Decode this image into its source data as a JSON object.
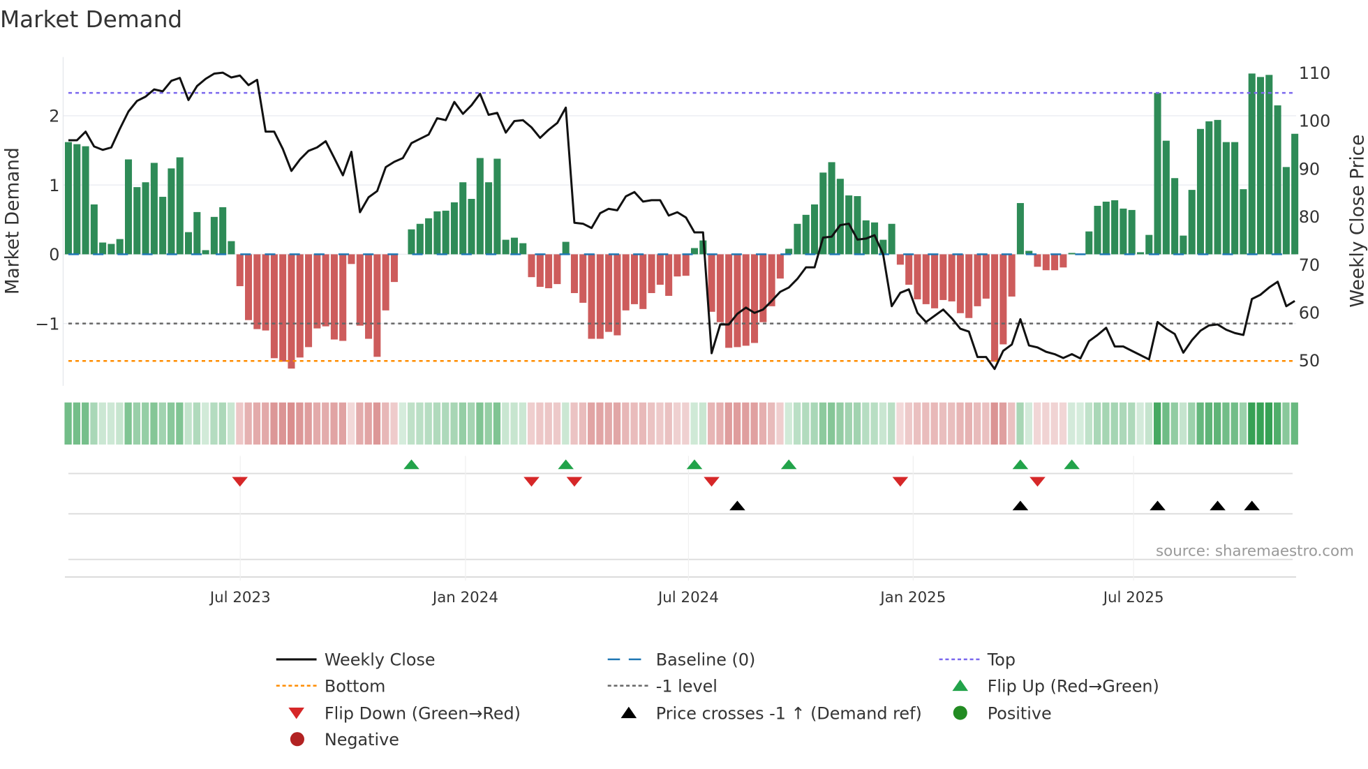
{
  "chart_data": {
    "type": "bar",
    "title": "Market Demand",
    "ylabel": "Market Demand",
    "y2label": "Weekly Close Price",
    "source": "source: sharemaestro.com",
    "ylim": [
      -1.9,
      2.85
    ],
    "y2lim": [
      47,
      114
    ],
    "yticks": [
      {
        "v": 2,
        "label": "2"
      },
      {
        "v": 1,
        "label": "1"
      },
      {
        "v": 0,
        "label": "0"
      },
      {
        "v": -1,
        "label": "−1"
      }
    ],
    "y2ticks": [
      {
        "v": 110,
        "label": "110"
      },
      {
        "v": 100,
        "label": "100"
      },
      {
        "v": 90,
        "label": "90"
      },
      {
        "v": 80,
        "label": "80"
      },
      {
        "v": 70,
        "label": "70"
      },
      {
        "v": 60,
        "label": "60"
      },
      {
        "v": 50,
        "label": "50"
      }
    ],
    "xticks": [
      {
        "x": 20.04,
        "label": "Jul 2023"
      },
      {
        "x": 46.3,
        "label": "Jan 2024"
      },
      {
        "x": 72.3,
        "label": "Jul 2024"
      },
      {
        "x": 98.5,
        "label": "Jan 2025"
      },
      {
        "x": 124.2,
        "label": "Jul 2025"
      }
    ],
    "levels": {
      "top": 2.33,
      "baseline": 0,
      "minus_one": -1,
      "bottom": -1.54
    },
    "demand": [
      1.62,
      1.59,
      1.56,
      0.72,
      0.17,
      0.15,
      0.22,
      1.37,
      0.97,
      1.04,
      1.32,
      0.83,
      1.24,
      1.4,
      0.32,
      0.61,
      0.06,
      0.54,
      0.68,
      0.19,
      -0.46,
      -0.95,
      -1.08,
      -1.1,
      -1.5,
      -1.55,
      -1.65,
      -1.49,
      -1.34,
      -1.07,
      -1.04,
      -1.23,
      -1.25,
      -0.14,
      -1.03,
      -1.22,
      -1.48,
      -0.81,
      -0.4,
      0,
      0.36,
      0.44,
      0.52,
      0.62,
      0.63,
      0.75,
      1.04,
      0.8,
      1.39,
      1.04,
      1.38,
      0.21,
      0.24,
      0.16,
      -0.33,
      -0.47,
      -0.49,
      -0.43,
      0.18,
      -0.56,
      -0.7,
      -1.22,
      -1.22,
      -1.12,
      -1.17,
      -0.81,
      -0.72,
      -0.79,
      -0.56,
      -0.44,
      -0.6,
      -0.32,
      -0.31,
      0.09,
      0.2,
      -0.83,
      -0.98,
      -1.35,
      -1.34,
      -1.32,
      -1.28,
      -0.98,
      -0.75,
      -0.35,
      0.08,
      0.44,
      0.57,
      0.72,
      1.18,
      1.33,
      1.09,
      0.85,
      0.84,
      0.49,
      0.46,
      0.21,
      0.44,
      -0.15,
      -0.44,
      -0.65,
      -0.72,
      -0.78,
      -0.66,
      -0.68,
      -0.85,
      -0.92,
      -0.75,
      -0.64,
      -1.55,
      -1.3,
      -0.61,
      0.74,
      0.05,
      -0.18,
      -0.23,
      -0.23,
      -0.19,
      0.02,
      0.01,
      0.33,
      0.7,
      0.76,
      0.78,
      0.66,
      0.64,
      0.03,
      0.28,
      2.33,
      1.64,
      1.1,
      0.27,
      0.93,
      1.81,
      1.92,
      1.94,
      1.62,
      1.62,
      0.94,
      2.61,
      2.56,
      2.59,
      2.15,
      1.26,
      1.74
    ],
    "weekly_close": [
      95.9,
      95.9,
      97.7,
      94.6,
      93.9,
      94.4,
      98.3,
      101.9,
      104.1,
      105.0,
      106.5,
      106.1,
      108.3,
      108.9,
      104.3,
      107.2,
      108.7,
      109.8,
      110.0,
      109.0,
      109.4,
      107.4,
      108.5,
      97.7,
      97.7,
      94.1,
      89.5,
      91.9,
      93.7,
      94.4,
      95.7,
      92.2,
      88.6,
      93.5,
      80.9,
      84.0,
      85.3,
      90.3,
      91.4,
      92.2,
      95.3,
      96.2,
      97.1,
      100.5,
      100.1,
      103.9,
      101.4,
      103.2,
      105.6,
      101.2,
      101.6,
      97.5,
      99.9,
      100.1,
      98.6,
      96.4,
      98.1,
      99.5,
      102.7,
      78.7,
      78.5,
      77.6,
      80.7,
      81.6,
      81.3,
      84.2,
      85.1,
      83.1,
      83.4,
      83.4,
      80.2,
      80.9,
      79.8,
      76.7,
      76.7,
      51.5,
      57.5,
      57.5,
      59.7,
      61.0,
      59.9,
      60.6,
      62.4,
      64.3,
      65.2,
      67.0,
      69.4,
      69.4,
      75.6,
      75.8,
      78.2,
      78.5,
      75.2,
      75.4,
      76.1,
      72.1,
      61.3,
      64.1,
      64.8,
      59.9,
      58.0,
      59.3,
      60.6,
      58.8,
      56.6,
      56.0,
      50.7,
      50.7,
      48.2,
      52.0,
      53.3,
      58.6,
      53.1,
      52.7,
      51.8,
      51.3,
      50.5,
      51.3,
      50.4,
      54.0,
      55.3,
      56.8,
      52.9,
      52.9,
      52.0,
      51.1,
      50.2,
      58.0,
      56.6,
      55.5,
      51.6,
      54.2,
      56.2,
      57.3,
      57.5,
      56.4,
      55.7,
      55.3,
      62.8,
      63.7,
      65.2,
      66.4,
      61.3,
      62.4
    ],
    "flip_up": [
      40,
      58,
      73,
      84,
      111,
      117
    ],
    "flip_down": [
      20,
      54,
      59,
      75,
      97,
      113
    ],
    "price_cross": [
      78,
      111,
      127,
      134,
      138
    ],
    "legend": [
      {
        "key": "close",
        "label": "Weekly Close"
      },
      {
        "key": "baseline",
        "label": "Baseline (0)"
      },
      {
        "key": "top",
        "label": "Top"
      },
      {
        "key": "bottom",
        "label": "Bottom"
      },
      {
        "key": "minus1",
        "label": "-1 level"
      },
      {
        "key": "flipup",
        "label": "Flip Up (Red→Green)"
      },
      {
        "key": "flipdown",
        "label": "Flip Down (Green→Red)"
      },
      {
        "key": "cross",
        "label": "Price crosses -1 ↑ (Demand ref)"
      },
      {
        "key": "positive",
        "label": "Positive"
      },
      {
        "key": "negative",
        "label": "Negative"
      }
    ],
    "colors": {
      "positive": "#2e8b57",
      "negative": "#cd5c5c",
      "close": "#111111",
      "top": "#7b68ee",
      "bottom": "#ff8c00",
      "baseline": "#1f77b4",
      "minus1": "#666666",
      "flipup": "#22a34a",
      "flipdown": "#d62728",
      "cross": "#000000",
      "dot_pos": "#228b22",
      "dot_neg": "#b22222"
    }
  }
}
